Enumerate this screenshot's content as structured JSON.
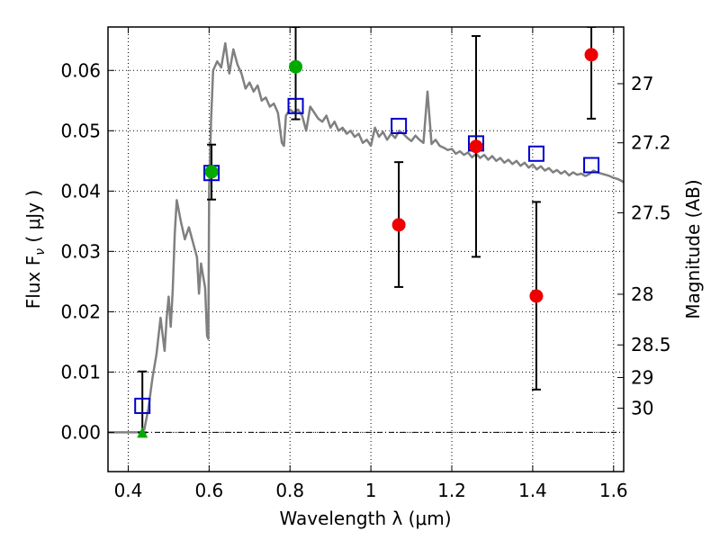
{
  "chart_data": {
    "type": "scatter",
    "xlabel": "Wavelength  λ (μm)",
    "ylabel": "Flux  F",
    "ylabel_sub": "ν",
    "ylabel_unit": " ( μJy )",
    "y2label": "Magnitude (AB)",
    "xlim": [
      0.35,
      1.625
    ],
    "ylim": [
      -0.0065,
      0.0672
    ],
    "x_ticks": [
      0.4,
      0.6,
      0.8,
      1.0,
      1.2,
      1.4,
      1.6
    ],
    "x_tick_labels": [
      "0.4",
      "0.6",
      "0.8",
      "1",
      "1.2",
      "1.4",
      "1.6"
    ],
    "y_ticks": [
      0.0,
      0.01,
      0.02,
      0.03,
      0.04,
      0.05,
      0.06
    ],
    "y_tick_labels": [
      "0.00",
      "0.01",
      "0.02",
      "0.03",
      "0.04",
      "0.05",
      "0.06"
    ],
    "y2_ticks": [
      {
        "label": "27",
        "flux": 0.0578
      },
      {
        "label": "27.2",
        "flux": 0.048
      },
      {
        "label": "27.5",
        "flux": 0.0364
      },
      {
        "label": "28",
        "flux": 0.0229
      },
      {
        "label": "28.5",
        "flux": 0.0145
      },
      {
        "label": "29",
        "flux": 0.0091
      },
      {
        "label": "30",
        "flux": 0.004
      }
    ],
    "grid": true,
    "colors": {
      "model": "#808080",
      "model_photometry": "#0000cc",
      "detections": "#00aa00",
      "low_significance": "#ee0000",
      "errorbar": "#000000"
    },
    "model_spectrum": [
      [
        0.35,
        0.0
      ],
      [
        0.43,
        0.0
      ],
      [
        0.44,
        0.0005
      ],
      [
        0.45,
        0.004
      ],
      [
        0.46,
        0.009
      ],
      [
        0.47,
        0.013
      ],
      [
        0.48,
        0.019
      ],
      [
        0.49,
        0.0135
      ],
      [
        0.495,
        0.019
      ],
      [
        0.5,
        0.0225
      ],
      [
        0.505,
        0.0175
      ],
      [
        0.51,
        0.0235
      ],
      [
        0.515,
        0.033
      ],
      [
        0.52,
        0.0385
      ],
      [
        0.53,
        0.035
      ],
      [
        0.54,
        0.032
      ],
      [
        0.55,
        0.034
      ],
      [
        0.56,
        0.0315
      ],
      [
        0.57,
        0.029
      ],
      [
        0.575,
        0.023
      ],
      [
        0.58,
        0.028
      ],
      [
        0.585,
        0.026
      ],
      [
        0.59,
        0.024
      ],
      [
        0.595,
        0.016
      ],
      [
        0.598,
        0.0155
      ],
      [
        0.6,
        0.0405
      ],
      [
        0.605,
        0.052
      ],
      [
        0.61,
        0.06
      ],
      [
        0.62,
        0.0615
      ],
      [
        0.63,
        0.0605
      ],
      [
        0.64,
        0.0645
      ],
      [
        0.65,
        0.0595
      ],
      [
        0.66,
        0.0635
      ],
      [
        0.67,
        0.061
      ],
      [
        0.68,
        0.0595
      ],
      [
        0.69,
        0.057
      ],
      [
        0.7,
        0.058
      ],
      [
        0.71,
        0.0565
      ],
      [
        0.72,
        0.0575
      ],
      [
        0.73,
        0.055
      ],
      [
        0.74,
        0.0555
      ],
      [
        0.75,
        0.054
      ],
      [
        0.76,
        0.0545
      ],
      [
        0.77,
        0.053
      ],
      [
        0.78,
        0.048
      ],
      [
        0.785,
        0.0475
      ],
      [
        0.79,
        0.0525
      ],
      [
        0.8,
        0.0535
      ],
      [
        0.81,
        0.053
      ],
      [
        0.82,
        0.0535
      ],
      [
        0.83,
        0.0525
      ],
      [
        0.84,
        0.05
      ],
      [
        0.85,
        0.054
      ],
      [
        0.86,
        0.053
      ],
      [
        0.87,
        0.052
      ],
      [
        0.88,
        0.0515
      ],
      [
        0.89,
        0.0525
      ],
      [
        0.9,
        0.0505
      ],
      [
        0.91,
        0.0515
      ],
      [
        0.92,
        0.05
      ],
      [
        0.93,
        0.0505
      ],
      [
        0.94,
        0.0495
      ],
      [
        0.95,
        0.05
      ],
      [
        0.96,
        0.049
      ],
      [
        0.97,
        0.0495
      ],
      [
        0.98,
        0.048
      ],
      [
        0.99,
        0.0485
      ],
      [
        1.0,
        0.0475
      ],
      [
        1.01,
        0.0505
      ],
      [
        1.02,
        0.049
      ],
      [
        1.03,
        0.0498
      ],
      [
        1.04,
        0.0485
      ],
      [
        1.05,
        0.0495
      ],
      [
        1.06,
        0.0488
      ],
      [
        1.07,
        0.05
      ],
      [
        1.08,
        0.0495
      ],
      [
        1.09,
        0.0488
      ],
      [
        1.1,
        0.0483
      ],
      [
        1.11,
        0.0492
      ],
      [
        1.12,
        0.0485
      ],
      [
        1.13,
        0.048
      ],
      [
        1.14,
        0.0565
      ],
      [
        1.15,
        0.0478
      ],
      [
        1.16,
        0.0485
      ],
      [
        1.17,
        0.0475
      ],
      [
        1.18,
        0.0472
      ],
      [
        1.19,
        0.0468
      ],
      [
        1.2,
        0.047
      ],
      [
        1.21,
        0.0462
      ],
      [
        1.22,
        0.0466
      ],
      [
        1.23,
        0.046
      ],
      [
        1.24,
        0.0464
      ],
      [
        1.25,
        0.0456
      ],
      [
        1.26,
        0.0462
      ],
      [
        1.27,
        0.0455
      ],
      [
        1.28,
        0.046
      ],
      [
        1.29,
        0.0452
      ],
      [
        1.3,
        0.0458
      ],
      [
        1.31,
        0.045
      ],
      [
        1.32,
        0.0455
      ],
      [
        1.33,
        0.0447
      ],
      [
        1.34,
        0.0452
      ],
      [
        1.35,
        0.0445
      ],
      [
        1.36,
        0.045
      ],
      [
        1.37,
        0.0442
      ],
      [
        1.38,
        0.0447
      ],
      [
        1.39,
        0.0439
      ],
      [
        1.4,
        0.0444
      ],
      [
        1.41,
        0.0436
      ],
      [
        1.42,
        0.0441
      ],
      [
        1.43,
        0.0434
      ],
      [
        1.44,
        0.0438
      ],
      [
        1.45,
        0.0431
      ],
      [
        1.46,
        0.0435
      ],
      [
        1.47,
        0.0429
      ],
      [
        1.48,
        0.0433
      ],
      [
        1.49,
        0.0426
      ],
      [
        1.5,
        0.0431
      ],
      [
        1.51,
        0.0427
      ],
      [
        1.52,
        0.0429
      ],
      [
        1.53,
        0.0425
      ],
      [
        1.54,
        0.0428
      ],
      [
        1.55,
        0.0434
      ],
      [
        1.56,
        0.0431
      ],
      [
        1.57,
        0.0429
      ],
      [
        1.58,
        0.0427
      ],
      [
        1.59,
        0.0425
      ],
      [
        1.6,
        0.0422
      ],
      [
        1.61,
        0.042
      ],
      [
        1.625,
        0.0415
      ]
    ],
    "model_photometry": [
      {
        "x": 0.435,
        "y": 0.0044
      },
      {
        "x": 0.606,
        "y": 0.043
      },
      {
        "x": 0.814,
        "y": 0.0541
      },
      {
        "x": 1.069,
        "y": 0.0508
      },
      {
        "x": 1.26,
        "y": 0.0479
      },
      {
        "x": 1.409,
        "y": 0.0462
      },
      {
        "x": 1.545,
        "y": 0.0443
      }
    ],
    "detections": [
      {
        "x": 0.606,
        "y": 0.0432,
        "err_low": 0.0386,
        "err_high": 0.0477
      },
      {
        "x": 0.814,
        "y": 0.0606,
        "err_low": 0.0519,
        "err_high": 0.0672
      }
    ],
    "upper_limit_marker": {
      "x": 0.435,
      "y": 0.0,
      "err_low": 0.0,
      "err_high": 0.0101
    },
    "low_significance": [
      {
        "x": 1.069,
        "y": 0.0344,
        "err_low": 0.0241,
        "err_high": 0.0448
      },
      {
        "x": 1.26,
        "y": 0.0474,
        "err_low": 0.0291,
        "err_high": 0.0657
      },
      {
        "x": 1.409,
        "y": 0.0226,
        "err_low": 0.0071,
        "err_high": 0.0382
      },
      {
        "x": 1.545,
        "y": 0.0626,
        "err_low": 0.052,
        "err_high": 0.0672
      }
    ]
  }
}
